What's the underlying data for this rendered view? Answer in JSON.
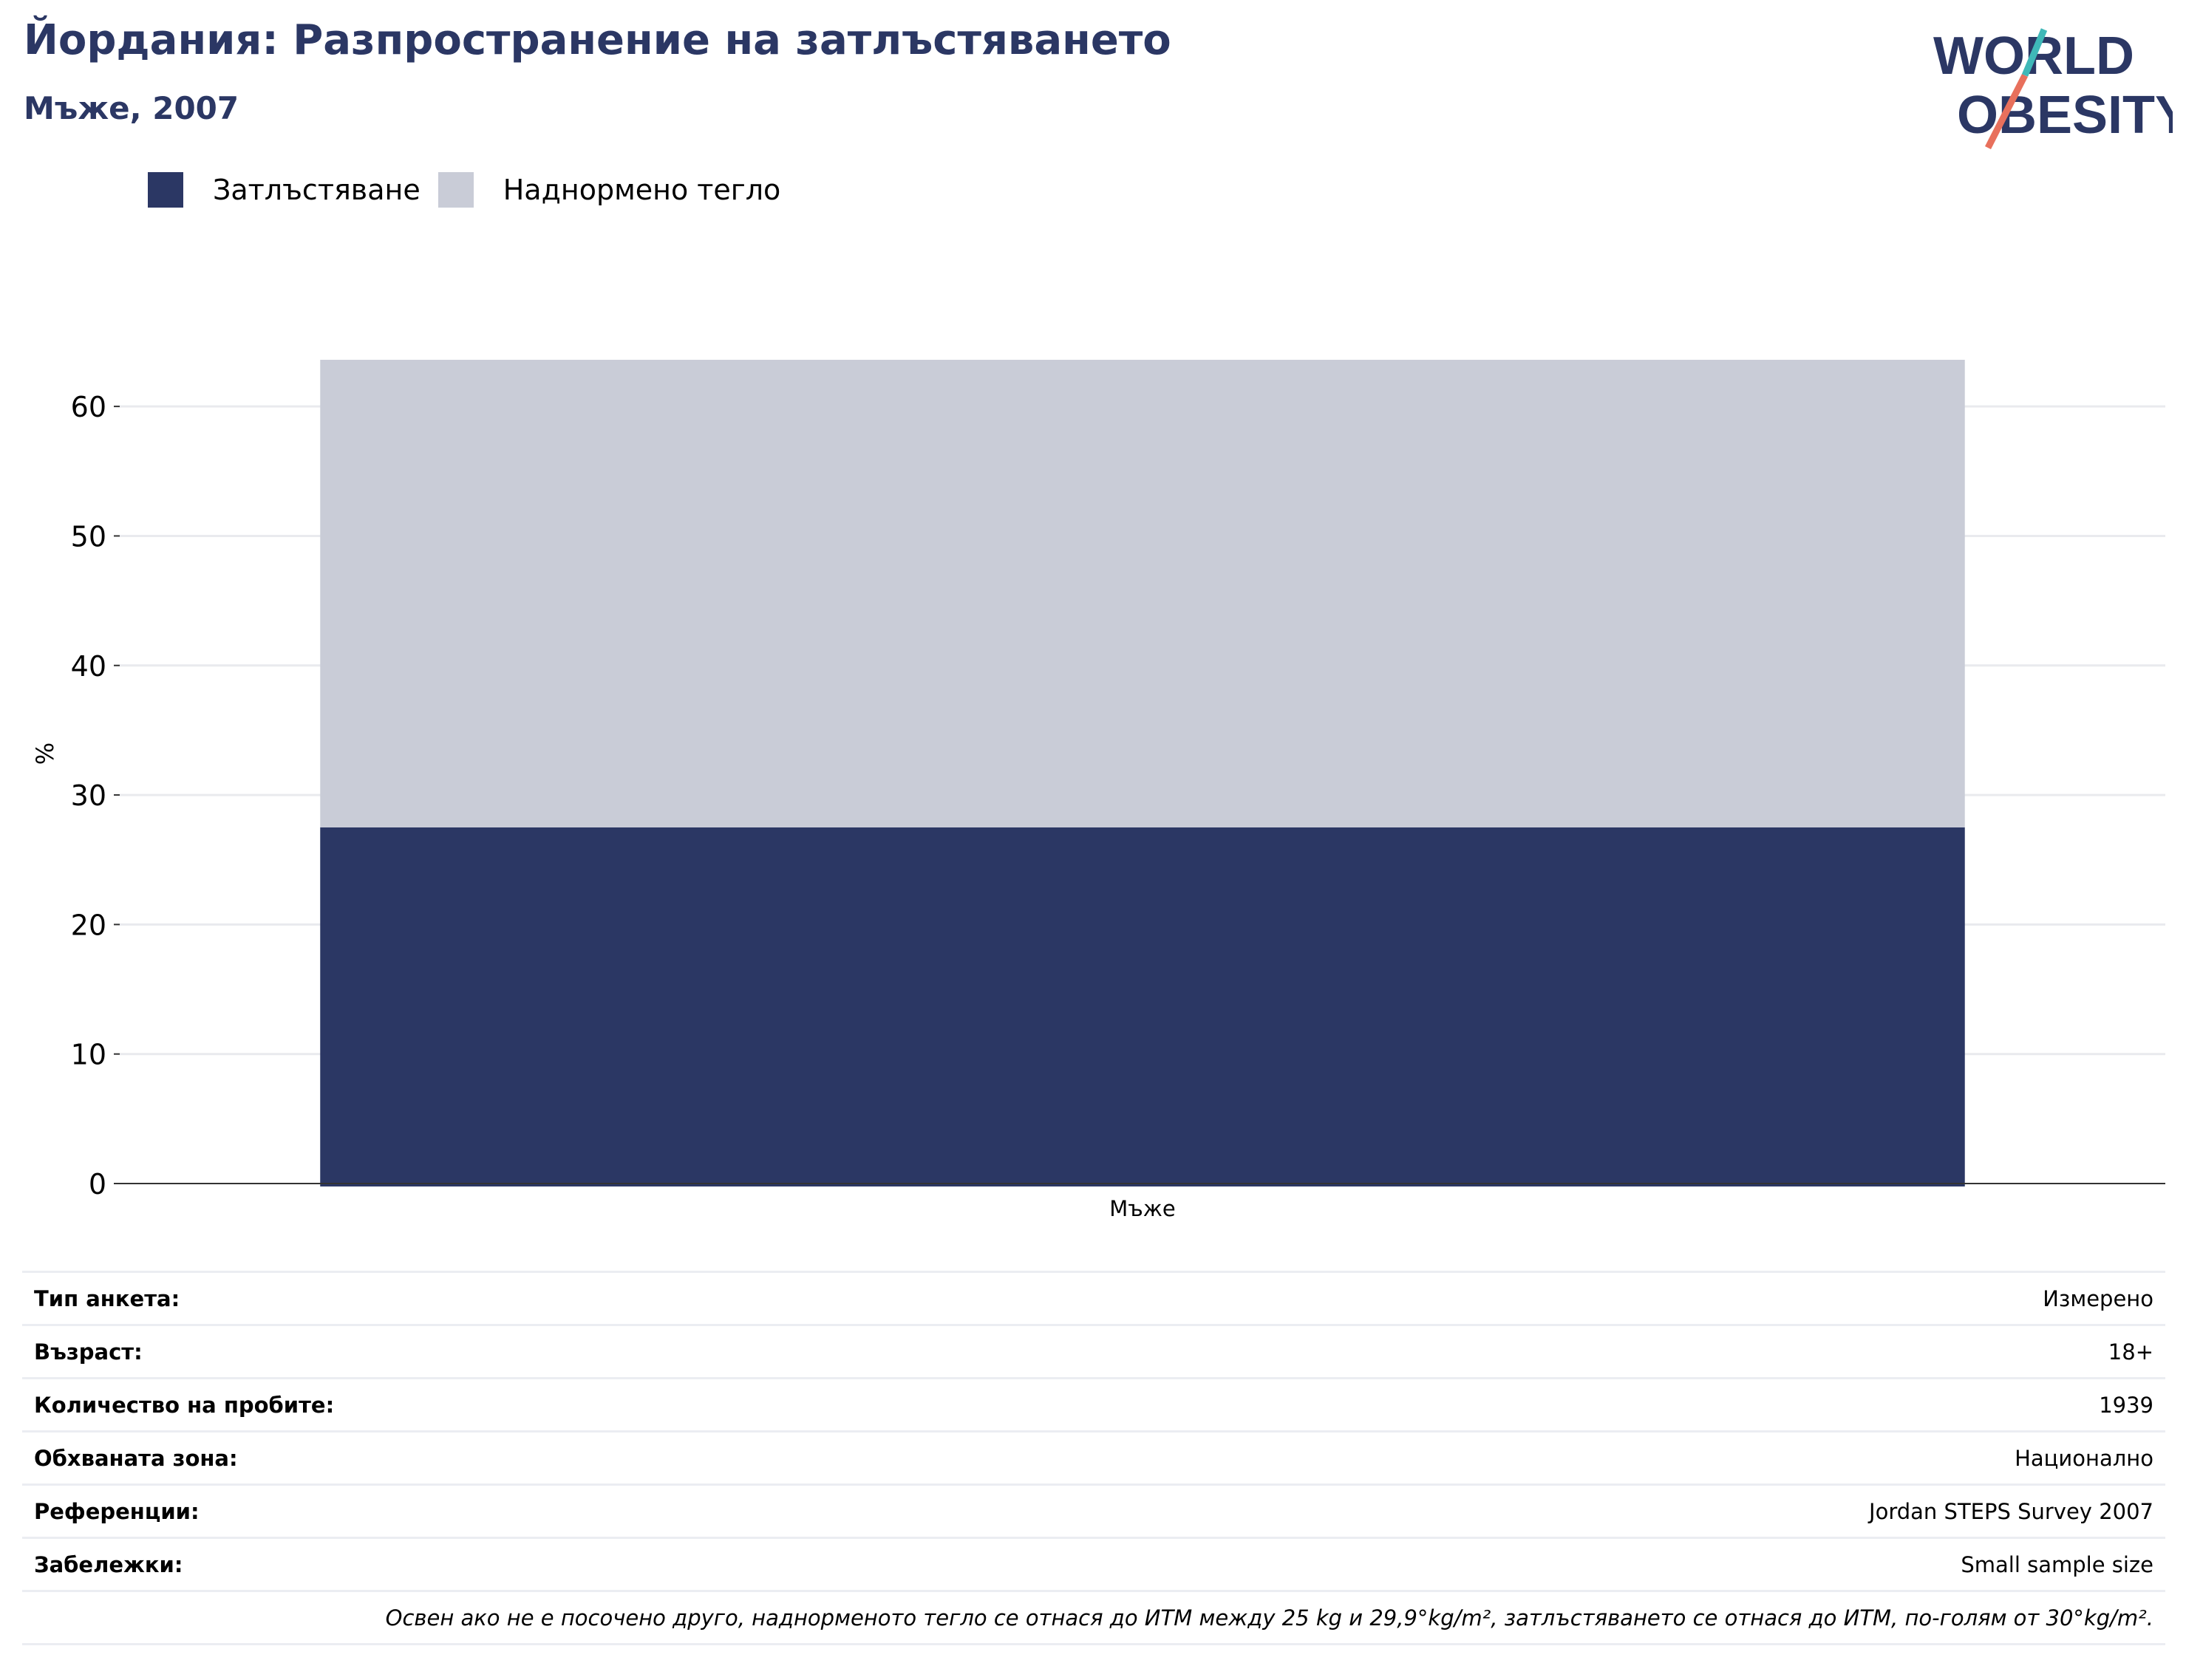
{
  "header": {
    "title": "Йордания: Разпространение на затлъстяването",
    "subtitle": "Мъже, 2007"
  },
  "logo": {
    "line1": "WORLD",
    "line2": "OBESITY",
    "colors": {
      "text": "#2b3764",
      "slash_teal": "#3fb8b8",
      "slash_coral": "#e8705c"
    }
  },
  "legend": [
    {
      "label": "Затлъстяване",
      "color": "#2b3764"
    },
    {
      "label": "Наднормено тегло",
      "color": "#c9ccd7"
    }
  ],
  "chart_data": {
    "type": "bar",
    "stacked": true,
    "categories": [
      "Мъже"
    ],
    "series": [
      {
        "name": "Затлъстяване",
        "values": [
          27.5
        ],
        "color": "#2b3764"
      },
      {
        "name": "Наднормено тегло",
        "values": [
          36.1
        ],
        "color": "#c9ccd7"
      }
    ],
    "title": "Йордания: Разпространение на затлъстяването",
    "subtitle": "Мъже, 2007",
    "xlabel": "",
    "ylabel": "%",
    "ylim": [
      0,
      64
    ],
    "yticks": [
      0,
      10,
      20,
      30,
      40,
      50,
      60
    ],
    "grid": true,
    "legend_position": "top-left"
  },
  "info": {
    "rows": [
      {
        "key": "Тип анкета:",
        "value": "Измерено"
      },
      {
        "key": "Възраст:",
        "value": "18+"
      },
      {
        "key": "Количество на пробите:",
        "value": "1939"
      },
      {
        "key": "Обхваната зона:",
        "value": "Национално"
      },
      {
        "key": "Референции:",
        "value": "Jordan STEPS Survey 2007"
      },
      {
        "key": "Забележки:",
        "value": "Small sample size"
      }
    ],
    "note": "Освен ако не е посочено друго, наднорменото тегло се отнася до ИТМ между 25 kg и 29,9°kg/m², затлъстяването се отнася до ИТМ, по-голям от 30°kg/m²."
  }
}
